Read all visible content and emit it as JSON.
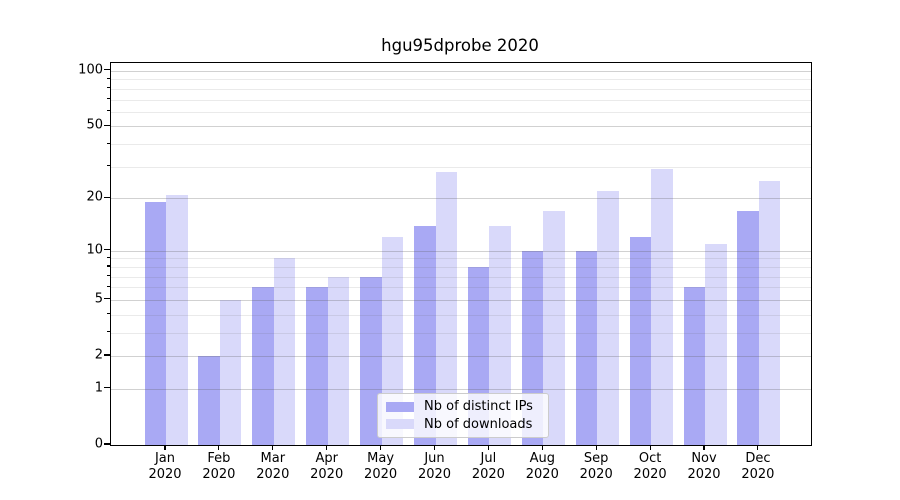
{
  "title": "hgu95dprobe 2020",
  "colors": {
    "distinct_ips_bar": "#a9a9f4",
    "downloads_bar": "#d9d9fa",
    "grid_major": "#d0d0d0",
    "grid_minor": "#e9e9e9",
    "axis": "#000000"
  },
  "legend": {
    "items": [
      {
        "label": "Nb of distinct IPs",
        "color": "#a9a9f4"
      },
      {
        "label": "Nb of downloads",
        "color": "#d9d9fa"
      }
    ]
  },
  "axes": {
    "y_tick_labels": [
      100,
      50,
      20,
      10,
      5,
      2,
      1,
      0
    ],
    "y_grid_major": [
      1,
      2,
      5,
      10,
      20,
      50,
      100
    ],
    "y_grid_minor": [
      3,
      4,
      6,
      7,
      8,
      9,
      30,
      40,
      60,
      70,
      80,
      90
    ],
    "x_tick_months": [
      "Jan",
      "Feb",
      "Mar",
      "Apr",
      "May",
      "Jun",
      "Jul",
      "Aug",
      "Sep",
      "Oct",
      "Nov",
      "Dec"
    ],
    "x_tick_year": "2020"
  },
  "chart_data": {
    "type": "bar",
    "title": "hgu95dprobe 2020",
    "categories": [
      "Jan 2020",
      "Feb 2020",
      "Mar 2020",
      "Apr 2020",
      "May 2020",
      "Jun 2020",
      "Jul 2020",
      "Aug 2020",
      "Sep 2020",
      "Oct 2020",
      "Nov 2020",
      "Dec 2020"
    ],
    "series": [
      {
        "name": "Nb of distinct IPs",
        "color": "#a9a9f4",
        "values": [
          19,
          2,
          6,
          6,
          7,
          14,
          8,
          10,
          10,
          12,
          6,
          17
        ]
      },
      {
        "name": "Nb of downloads",
        "color": "#d9d9fa",
        "values": [
          21,
          5,
          9,
          7,
          12,
          28,
          14,
          17,
          22,
          29,
          11,
          25
        ]
      }
    ],
    "xlabel": "",
    "ylabel": "",
    "yscale": "log1p",
    "ylim": [
      0,
      110
    ],
    "grid": true,
    "legend_position": "lower center"
  }
}
